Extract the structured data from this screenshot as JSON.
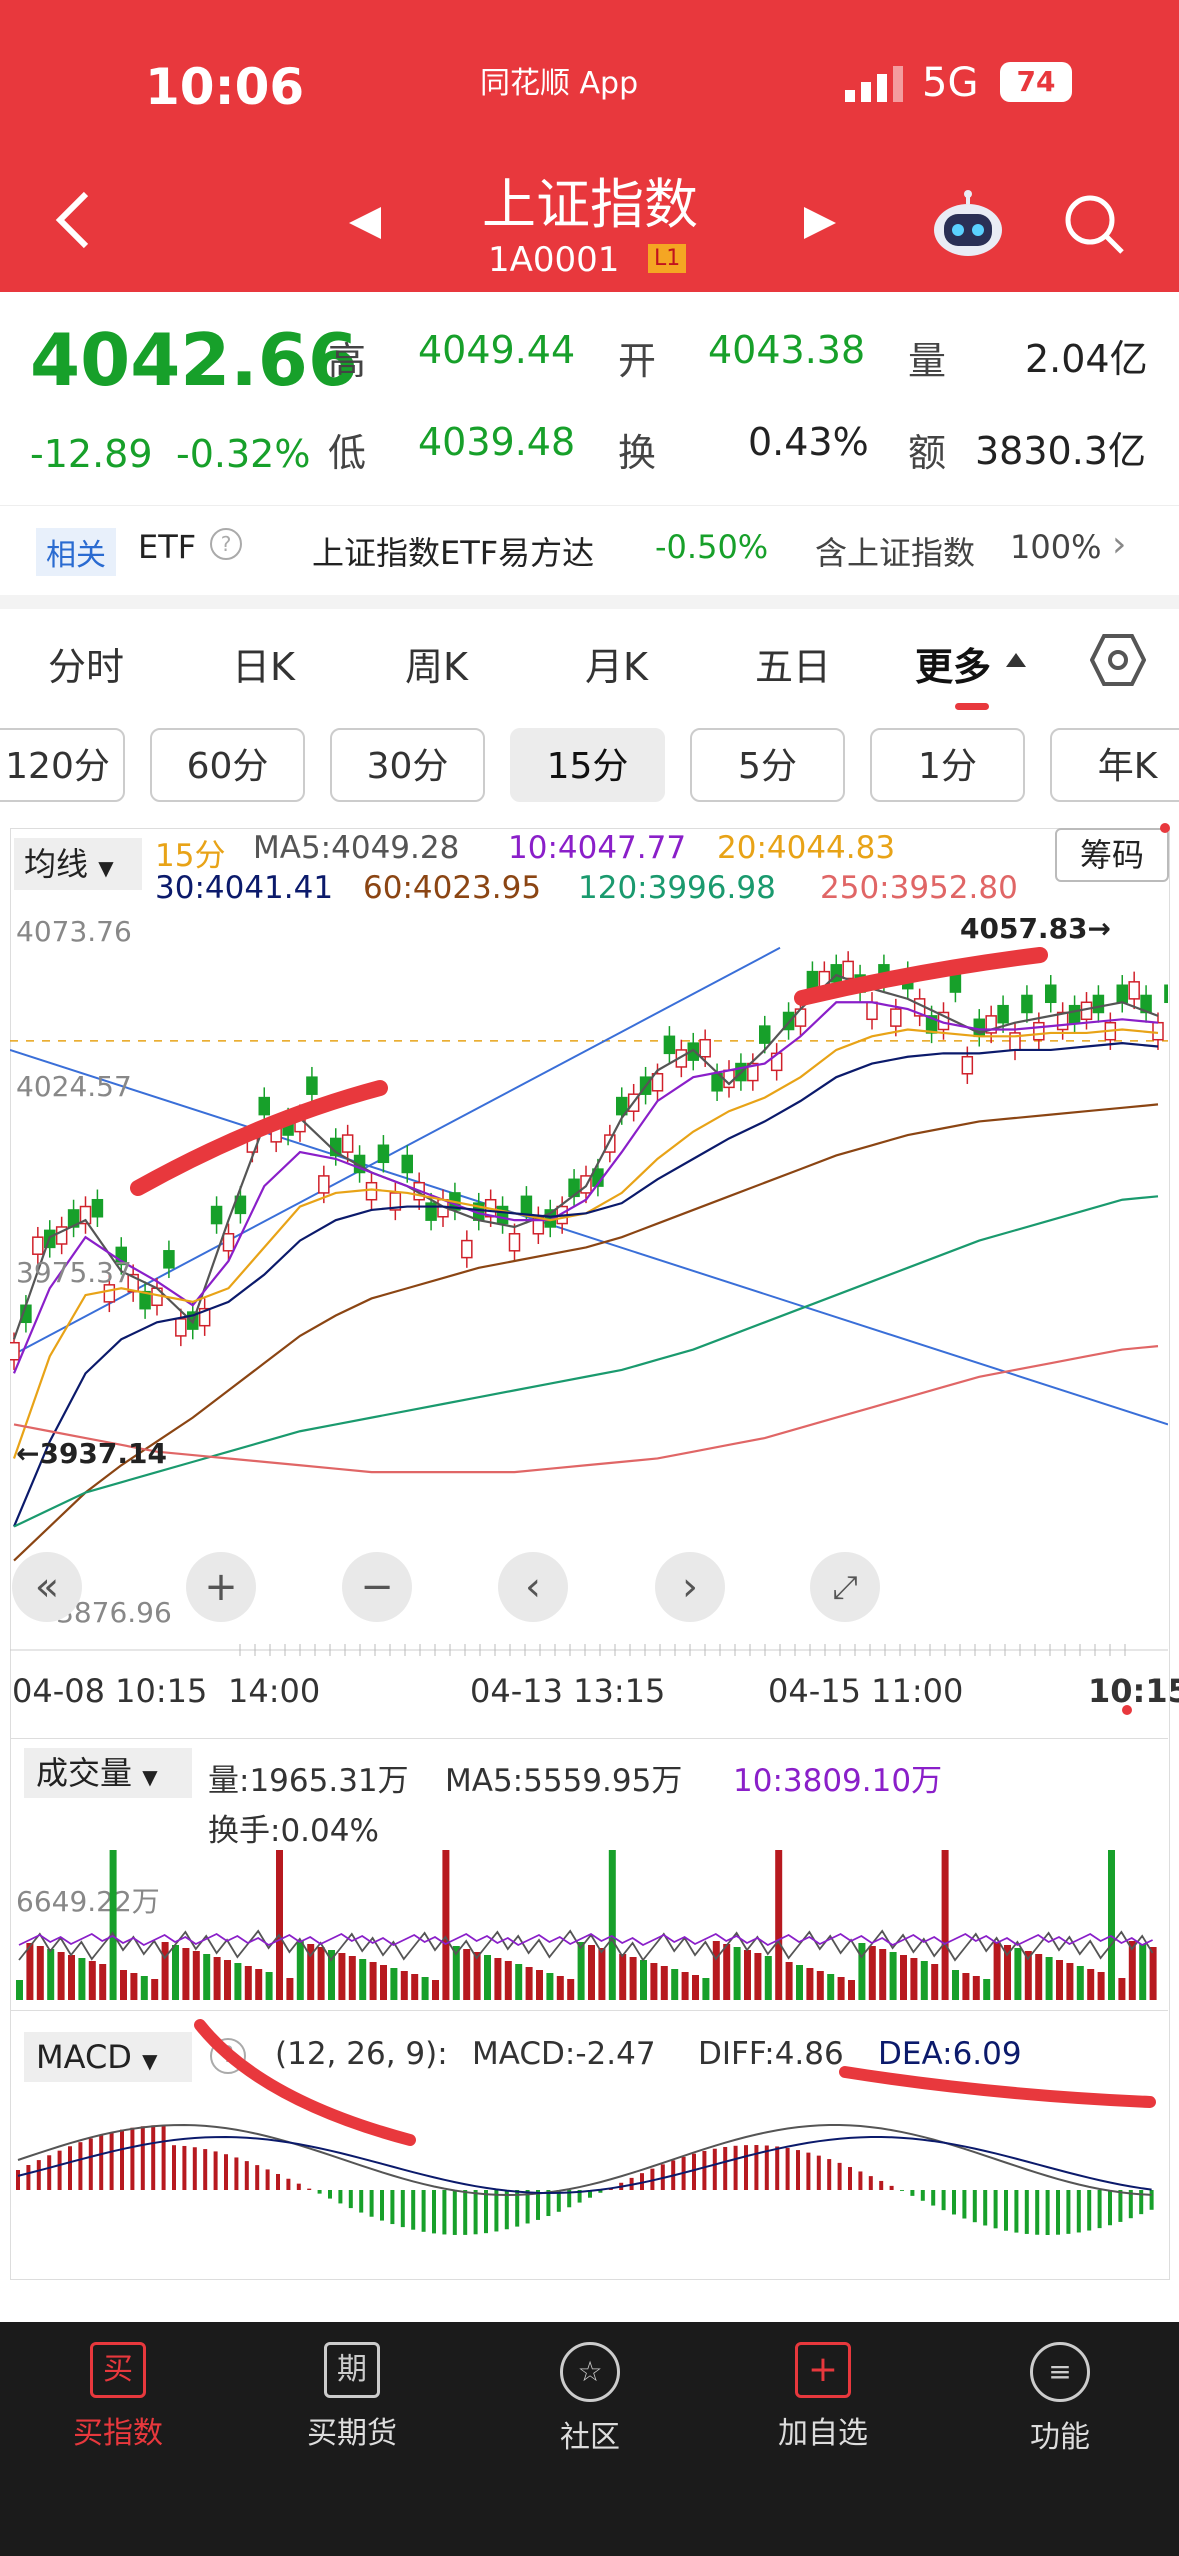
{
  "status": {
    "time": "10:06",
    "app": "同花顺 App",
    "network": "5G",
    "battery": "74"
  },
  "header": {
    "title": "上证指数",
    "code": "1A0001",
    "level": "L1"
  },
  "quote": {
    "price": "4042.66",
    "change": "-12.89",
    "change_pct": "-0.32%",
    "high_label": "高",
    "high": "4049.44",
    "low_label": "低",
    "low": "4039.48",
    "open_label": "开",
    "open": "4043.38",
    "turn_label": "换",
    "turn": "0.43%",
    "vol_label": "量",
    "vol": "2.04亿",
    "amt_label": "额",
    "amt": "3830.3亿"
  },
  "etf": {
    "tag": "相关",
    "label": "ETF",
    "name": "上证指数ETF易方达",
    "change": "-0.50%",
    "holding_label": "含上证指数",
    "holding": "100%"
  },
  "tabs": [
    "分时",
    "日K",
    "周K",
    "月K",
    "五日",
    "更多"
  ],
  "intervals": [
    "120分",
    "60分",
    "30分",
    "15分",
    "5分",
    "1分",
    "年K"
  ],
  "chart": {
    "ma_select": "均线",
    "chip_button": "筹码",
    "period": "15分",
    "ma5": "MA5:4049.28",
    "ma10": "10:4047.77",
    "ma20": "20:4044.83",
    "ma30": "30:4041.41",
    "ma60": "60:4023.95",
    "ma120": "120:3996.98",
    "ma250": "250:3952.80",
    "y_top": "4073.76",
    "y_mid": "4024.57",
    "y_mid2": "3975.37",
    "y_bottom": "3876.96",
    "high_mark": "4057.83",
    "low_mark": "3937.14",
    "x_labels": [
      "04-08 10:15",
      "14:00",
      "04-13 13:15",
      "04-15 11:00",
      "10:15"
    ]
  },
  "volume": {
    "select": "成交量",
    "vol": "量:1965.31万",
    "ma5": "MA5:5559.95万",
    "ma10": "10:3809.10万",
    "turn": "换手:0.04%",
    "y_label": "6649.22万"
  },
  "macd": {
    "select": "MACD",
    "params": "(12, 26, 9):",
    "macd": "MACD:-2.47",
    "diff": "DIFF:4.86",
    "dea": "DEA:6.09"
  },
  "nav": [
    "买指数",
    "买期货",
    "社区",
    "加自选",
    "功能"
  ],
  "colors": {
    "red": "#e8383d",
    "green": "#17a02a",
    "ma5": "#555555",
    "ma10": "#8a1fc9",
    "ma20": "#e8a317",
    "ma30": "#0b1a6b",
    "ma60": "#8b4513",
    "ma120": "#1a9a6e",
    "ma250": "#e06666"
  },
  "chart_data": {
    "type": "line",
    "series": [
      {
        "name": "MA5",
        "values": [
          3955,
          3985,
          3990,
          3975,
          3970,
          3960,
          3990,
          4018,
          4020,
          4010,
          4004,
          4000,
          3994,
          3990,
          3988,
          3992,
          4000,
          4020,
          4034,
          4040,
          4030,
          4040,
          4052,
          4062,
          4058,
          4055,
          4050,
          4045,
          4048,
          4050,
          4052,
          4054,
          4050
        ]
      },
      {
        "name": "MA10",
        "values": [
          3945,
          3970,
          3985,
          3978,
          3972,
          3965,
          3978,
          4000,
          4010,
          4008,
          4004,
          4000,
          3996,
          3992,
          3990,
          3990,
          3996,
          4010,
          4025,
          4032,
          4034,
          4036,
          4044,
          4054,
          4054,
          4052,
          4048,
          4046,
          4046,
          4047,
          4048,
          4049,
          4048
        ]
      },
      {
        "name": "MA20",
        "values": [
          3920,
          3950,
          3968,
          3970,
          3968,
          3966,
          3970,
          3982,
          3994,
          3998,
          3999,
          3998,
          3996,
          3994,
          3992,
          3990,
          3992,
          3998,
          4008,
          4016,
          4022,
          4026,
          4032,
          4040,
          4044,
          4046,
          4045,
          4044,
          4044,
          4045,
          4045,
          4046,
          4045
        ]
      },
      {
        "name": "MA30",
        "values": [
          3900,
          3925,
          3945,
          3955,
          3960,
          3962,
          3966,
          3974,
          3984,
          3990,
          3993,
          3994,
          3994,
          3993,
          3992,
          3991,
          3992,
          3995,
          4002,
          4008,
          4014,
          4019,
          4025,
          4032,
          4036,
          4038,
          4039,
          4039,
          4040,
          4040,
          4041,
          4042,
          4041
        ]
      },
      {
        "name": "MA60",
        "values": [
          3890,
          3900,
          3910,
          3918,
          3925,
          3932,
          3940,
          3948,
          3956,
          3962,
          3967,
          3970,
          3973,
          3976,
          3978,
          3980,
          3982,
          3985,
          3989,
          3993,
          3997,
          4001,
          4005,
          4009,
          4012,
          4015,
          4017,
          4019,
          4020,
          4021,
          4022,
          4023,
          4024
        ]
      },
      {
        "name": "MA120",
        "values": [
          3900,
          3905,
          3910,
          3913,
          3916,
          3919,
          3922,
          3925,
          3928,
          3930,
          3932,
          3934,
          3936,
          3938,
          3940,
          3942,
          3944,
          3946,
          3949,
          3952,
          3956,
          3960,
          3964,
          3968,
          3972,
          3976,
          3980,
          3984,
          3987,
          3990,
          3993,
          3996,
          3997
        ]
      },
      {
        "name": "MA250",
        "values": [
          3930,
          3928,
          3926,
          3924,
          3922,
          3921,
          3920,
          3919,
          3918,
          3917,
          3916,
          3916,
          3916,
          3916,
          3916,
          3917,
          3918,
          3919,
          3920,
          3922,
          3924,
          3926,
          3929,
          3932,
          3935,
          3938,
          3941,
          3944,
          3946,
          3948,
          3950,
          3952,
          3953
        ]
      }
    ],
    "ylim": [
      3876.96,
      4073.76
    ],
    "x_ticks": [
      "04-08 10:15",
      "14:00",
      "04-13 13:15",
      "04-15 11:00",
      "10:15"
    ]
  }
}
